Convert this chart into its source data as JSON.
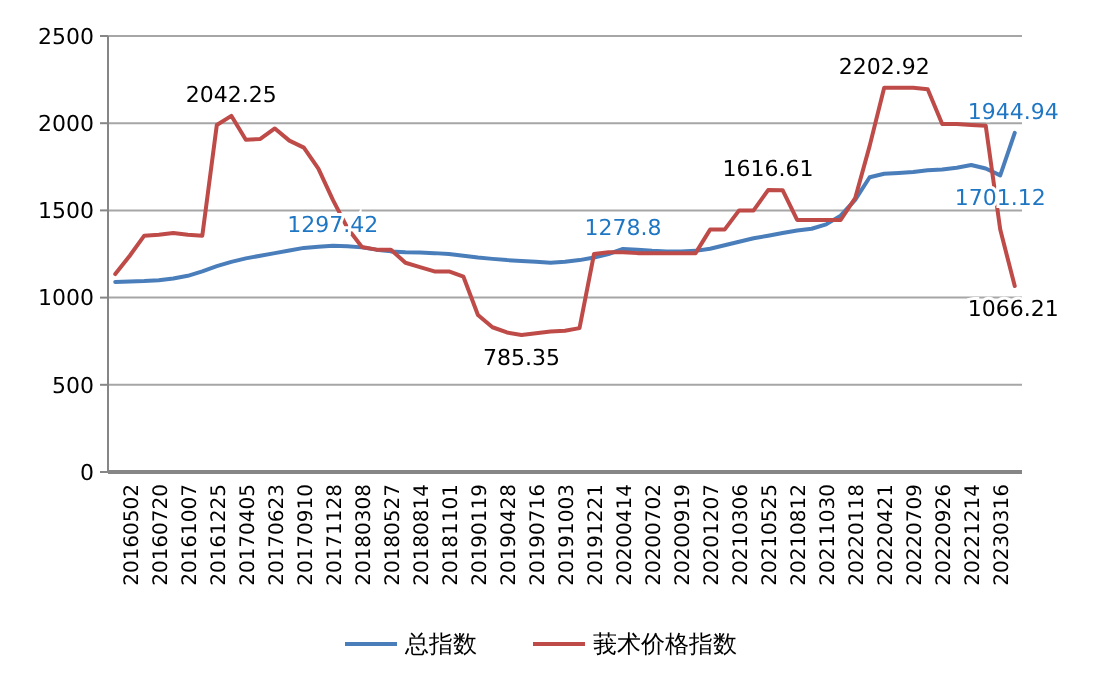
{
  "chart_data": {
    "type": "line",
    "categories": [
      null,
      "20160502",
      null,
      "20160720",
      null,
      "20161007",
      null,
      "20161225",
      null,
      "20170405",
      null,
      "20170623",
      null,
      "20170910",
      null,
      "20171128",
      null,
      "20180308",
      null,
      "20180527",
      null,
      "20180814",
      null,
      "20181101",
      null,
      "20190119",
      null,
      "20190428",
      null,
      "20190716",
      null,
      "20191003",
      null,
      "20191221",
      null,
      "20200414",
      null,
      "20200702",
      null,
      "20200919",
      null,
      "20201207",
      null,
      "20210306",
      null,
      "20210525",
      null,
      "20210812",
      null,
      "20211030",
      null,
      "20220118",
      null,
      "20220421",
      null,
      "20220709",
      null,
      "20220926",
      null,
      "20221214",
      null,
      "20230316",
      null
    ],
    "series": [
      {
        "name": "总指数",
        "color": "#4a7ebb",
        "values": [
          1090,
          1092,
          1095,
          1100,
          1110,
          1125,
          1150,
          1180,
          1205,
          1225,
          1240,
          1255,
          1270,
          1285,
          1292,
          1297.42,
          1295,
          1288,
          1275,
          1265,
          1260,
          1258,
          1255,
          1250,
          1240,
          1230,
          1222,
          1215,
          1210,
          1205,
          1200,
          1205,
          1215,
          1230,
          1250,
          1278.8,
          1275,
          1268,
          1265,
          1265,
          1268,
          1280,
          1300,
          1320,
          1340,
          1355,
          1370,
          1385,
          1395,
          1420,
          1470,
          1560,
          1690,
          1710,
          1715,
          1720,
          1730,
          1735,
          1745,
          1760,
          1740,
          1701.12,
          1944.94
        ],
        "value_labels": [
          null,
          null,
          null,
          null,
          null,
          null,
          null,
          null,
          null,
          null,
          null,
          null,
          null,
          null,
          null,
          "1297.42",
          null,
          null,
          null,
          null,
          null,
          null,
          null,
          null,
          null,
          null,
          null,
          null,
          null,
          null,
          null,
          null,
          null,
          null,
          null,
          "1278.8",
          null,
          null,
          null,
          null,
          null,
          null,
          null,
          null,
          null,
          null,
          null,
          null,
          null,
          null,
          null,
          null,
          null,
          null,
          null,
          null,
          null,
          null,
          null,
          null,
          null,
          "1701.12",
          "1944.94"
        ]
      },
      {
        "name": "莪术价格指数",
        "color": "#be4b48",
        "values": [
          1135,
          1240,
          1355,
          1360,
          1370,
          1360,
          1355,
          1990,
          2042.25,
          1905,
          1910,
          1970,
          1900,
          1860,
          1740,
          1560,
          1400,
          1290,
          1275,
          1275,
          1200,
          1175,
          1150,
          1150,
          1120,
          900,
          830,
          800,
          785.35,
          795,
          805,
          810,
          825,
          1250,
          1260,
          1260,
          1255,
          1255,
          1255,
          1255,
          1255,
          1390,
          1390,
          1500,
          1500,
          1616.61,
          1616,
          1445,
          1445,
          1445,
          1445,
          1570,
          1870,
          2202.92,
          2202.92,
          2202.92,
          2195,
          1995,
          1995,
          1990,
          1985,
          1390,
          1066.21
        ],
        "value_labels": [
          null,
          null,
          null,
          null,
          null,
          null,
          null,
          null,
          "2042.25",
          null,
          null,
          null,
          null,
          null,
          null,
          null,
          null,
          null,
          null,
          null,
          null,
          null,
          null,
          null,
          null,
          null,
          null,
          null,
          "785.35",
          null,
          null,
          null,
          null,
          null,
          null,
          null,
          null,
          null,
          null,
          null,
          null,
          null,
          null,
          null,
          null,
          "1616.61",
          null,
          null,
          null,
          null,
          null,
          null,
          null,
          "2202.92",
          null,
          null,
          null,
          null,
          null,
          null,
          null,
          null,
          "1066.21"
        ]
      }
    ],
    "ylim": [
      0,
      2500
    ],
    "yticks": [
      0,
      500,
      1000,
      1500,
      2000,
      2500
    ],
    "grid": "y",
    "legend": "bottom",
    "marker": "none",
    "line_style": "solid"
  }
}
